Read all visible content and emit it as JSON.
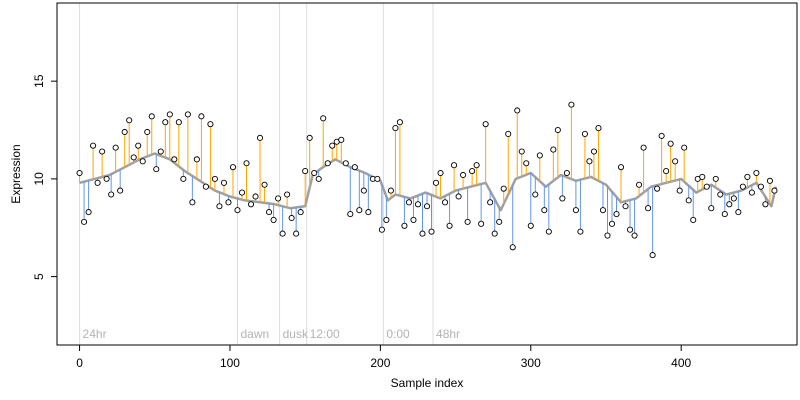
{
  "chart_data": {
    "type": "scatter",
    "title": "",
    "xlabel": "Sample index",
    "ylabel": "Expression",
    "xlim": [
      -15,
      477
    ],
    "ylim": [
      1.5,
      19
    ],
    "x_ticks": [
      0,
      100,
      200,
      300,
      400
    ],
    "y_ticks": [
      5,
      10,
      15
    ],
    "grid": false,
    "colors": {
      "above": "#FFA500",
      "below": "#6495ED",
      "trend": "#A0A0A0",
      "points": "#000000",
      "markers": "#DDDDDD",
      "annotation_text": "#B3B3B3"
    },
    "annotations": [
      {
        "x": 0,
        "label": "24hr"
      },
      {
        "x": 105,
        "label": "dawn"
      },
      {
        "x": 133,
        "label": "dusk"
      },
      {
        "x": 151,
        "label": "12:00"
      },
      {
        "x": 202,
        "label": "0:00"
      },
      {
        "x": 235,
        "label": "48hr"
      }
    ],
    "trend": {
      "x": [
        0,
        10,
        20,
        30,
        40,
        50,
        60,
        70,
        80,
        90,
        100,
        110,
        120,
        130,
        140,
        150,
        155,
        160,
        170,
        180,
        190,
        200,
        205,
        210,
        220,
        230,
        240,
        250,
        260,
        270,
        280,
        290,
        300,
        310,
        320,
        330,
        340,
        350,
        360,
        370,
        380,
        390,
        400,
        410,
        420,
        430,
        440,
        450,
        460,
        463
      ],
      "y": [
        9.8,
        10.0,
        10.2,
        10.6,
        11.0,
        11.3,
        11.0,
        10.4,
        9.9,
        9.4,
        9.1,
        8.9,
        8.8,
        8.7,
        8.5,
        8.6,
        10.2,
        10.5,
        11.0,
        10.6,
        10.3,
        9.9,
        8.9,
        9.2,
        9.0,
        9.3,
        9.0,
        9.4,
        9.6,
        9.8,
        8.4,
        10.0,
        10.3,
        9.6,
        10.2,
        9.9,
        10.1,
        9.7,
        8.8,
        9.0,
        9.6,
        9.8,
        10.0,
        9.3,
        9.7,
        9.2,
        9.4,
        9.8,
        8.6,
        9.6
      ]
    },
    "points": {
      "x": [
        0,
        3,
        6,
        9,
        12,
        15,
        18,
        21,
        24,
        27,
        30,
        33,
        36,
        39,
        42,
        45,
        48,
        51,
        54,
        57,
        60,
        63,
        66,
        69,
        72,
        75,
        78,
        81,
        84,
        87,
        90,
        93,
        96,
        99,
        102,
        105,
        108,
        111,
        114,
        117,
        120,
        123,
        126,
        129,
        132,
        135,
        138,
        141,
        144,
        147,
        150,
        153,
        156,
        159,
        162,
        165,
        168,
        171,
        174,
        177,
        180,
        183,
        186,
        189,
        192,
        195,
        198,
        201,
        204,
        207,
        210,
        213,
        216,
        219,
        222,
        225,
        228,
        231,
        234,
        237,
        240,
        243,
        246,
        249,
        252,
        255,
        258,
        261,
        264,
        267,
        270,
        273,
        276,
        279,
        282,
        285,
        288,
        291,
        294,
        297,
        300,
        303,
        306,
        309,
        312,
        315,
        318,
        321,
        324,
        327,
        330,
        333,
        336,
        339,
        342,
        345,
        348,
        351,
        354,
        357,
        360,
        363,
        366,
        369,
        372,
        375,
        378,
        381,
        384,
        387,
        390,
        393,
        396,
        399,
        402,
        405,
        408,
        411,
        414,
        417,
        420,
        423,
        426,
        429,
        432,
        435,
        438,
        441,
        444,
        447,
        450,
        453,
        456,
        459,
        462
      ],
      "y": [
        10.3,
        7.8,
        8.3,
        11.7,
        9.8,
        11.4,
        10.0,
        9.2,
        11.6,
        9.4,
        12.4,
        13.0,
        11.1,
        11.7,
        10.9,
        12.4,
        13.2,
        10.5,
        11.4,
        12.9,
        13.3,
        11.0,
        12.9,
        10.0,
        13.3,
        8.8,
        11.0,
        13.2,
        9.6,
        12.8,
        10.0,
        8.6,
        9.8,
        8.8,
        10.6,
        8.4,
        9.3,
        10.8,
        8.7,
        9.1,
        12.1,
        9.7,
        8.3,
        7.9,
        9.0,
        7.2,
        9.2,
        8.0,
        7.2,
        8.3,
        10.4,
        12.1,
        10.3,
        10.0,
        13.1,
        10.8,
        11.7,
        11.9,
        12.0,
        10.8,
        8.2,
        10.6,
        8.4,
        9.4,
        8.3,
        10.0,
        10.0,
        7.4,
        7.9,
        9.4,
        12.6,
        12.9,
        7.6,
        8.8,
        7.9,
        8.7,
        7.2,
        8.6,
        7.3,
        9.8,
        10.3,
        8.8,
        7.6,
        10.7,
        9.1,
        10.2,
        7.8,
        10.4,
        10.7,
        7.7,
        12.8,
        8.8,
        7.2,
        7.8,
        9.5,
        12.3,
        6.5,
        13.5,
        11.4,
        10.8,
        7.6,
        9.2,
        11.2,
        8.4,
        7.3,
        11.5,
        12.5,
        9.0,
        10.3,
        13.8,
        8.4,
        7.3,
        12.3,
        10.9,
        11.4,
        12.6,
        8.4,
        7.1,
        7.7,
        8.2,
        10.6,
        8.6,
        7.4,
        7.1,
        9.7,
        11.6,
        8.5,
        6.1,
        9.5,
        12.2,
        10.4,
        11.8,
        10.9,
        9.4,
        11.6,
        8.9,
        7.9,
        10.0,
        10.1,
        9.6,
        8.5,
        10.0,
        9.2,
        8.2,
        8.7,
        9.0,
        8.3,
        9.6,
        10.1,
        9.3,
        10.3,
        9.6,
        8.7,
        9.9,
        9.4
      ]
    }
  }
}
